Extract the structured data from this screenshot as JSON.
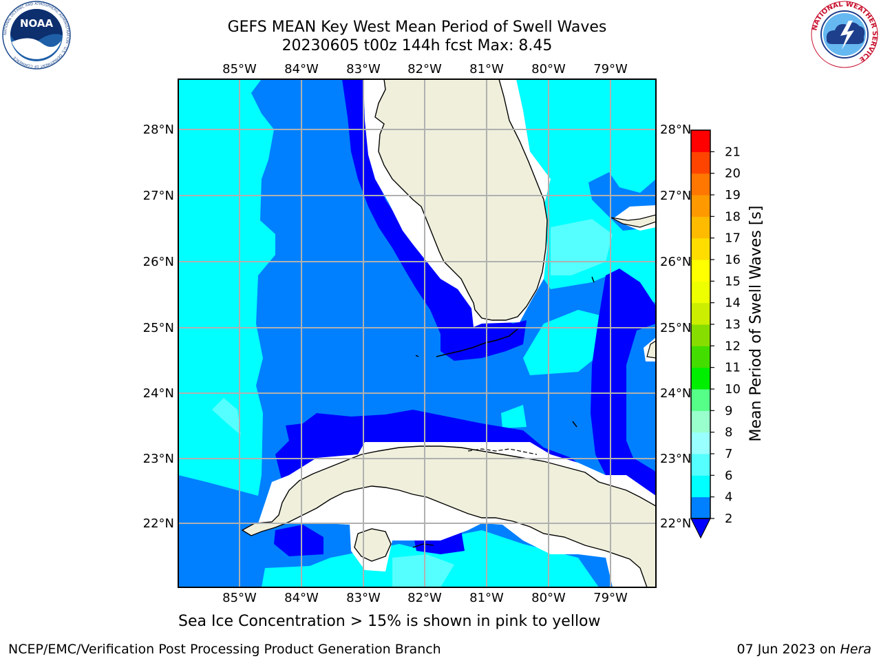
{
  "title": {
    "line1": "GEFS MEAN Key West Mean Period of Swell Waves",
    "line2": "20230605 t00z 144h fcst   Max: 8.45"
  },
  "map": {
    "lon_labels": [
      "85°W",
      "84°W",
      "83°W",
      "82°W",
      "81°W",
      "80°W",
      "79°W"
    ],
    "lat_labels": [
      "28°N",
      "27°N",
      "26°N",
      "25°N",
      "24°N",
      "23°N",
      "22°N"
    ],
    "land_color": "#efefdc",
    "colors": {
      "band_2_4": "#0080ff",
      "band_4_6": "#00ffff",
      "band_6_8": "#55ffff",
      "below_2": "#0000ff"
    }
  },
  "colorbar": {
    "label": "Mean Period of Swell Waves [s]",
    "ticks": [
      "2",
      "4",
      "6",
      "7",
      "8",
      "9",
      "10",
      "11",
      "12",
      "13",
      "14",
      "15",
      "16",
      "17",
      "18",
      "19",
      "20",
      "21"
    ],
    "colors": [
      "#0080ff",
      "#00ffff",
      "#55ffff",
      "#99ffff",
      "#99ffcc",
      "#55ff88",
      "#00ee00",
      "#44dd00",
      "#88dd00",
      "#ccee00",
      "#eeff00",
      "#ffff00",
      "#ffdd00",
      "#ffbb00",
      "#ff9900",
      "#ff7700",
      "#ff4400",
      "#ff0000"
    ],
    "extend_color": "#0000ff"
  },
  "logos": {
    "noaa_text": "NOAA",
    "noaa_ring_text": "NATIONAL OCEANIC AND ATMOSPHERIC ADMINISTRATION · U.S. DEPARTMENT OF COMMERCE",
    "nws_ring_text": "NATIONAL WEATHER SERVICE"
  },
  "note": "Sea Ice Concentration > 15% is shown in pink to yellow",
  "footer": {
    "credit": "NCEP/EMC/Verification Post Processing Product Generation Branch",
    "date": "07 Jun 2023 on",
    "machine": "Hera"
  }
}
